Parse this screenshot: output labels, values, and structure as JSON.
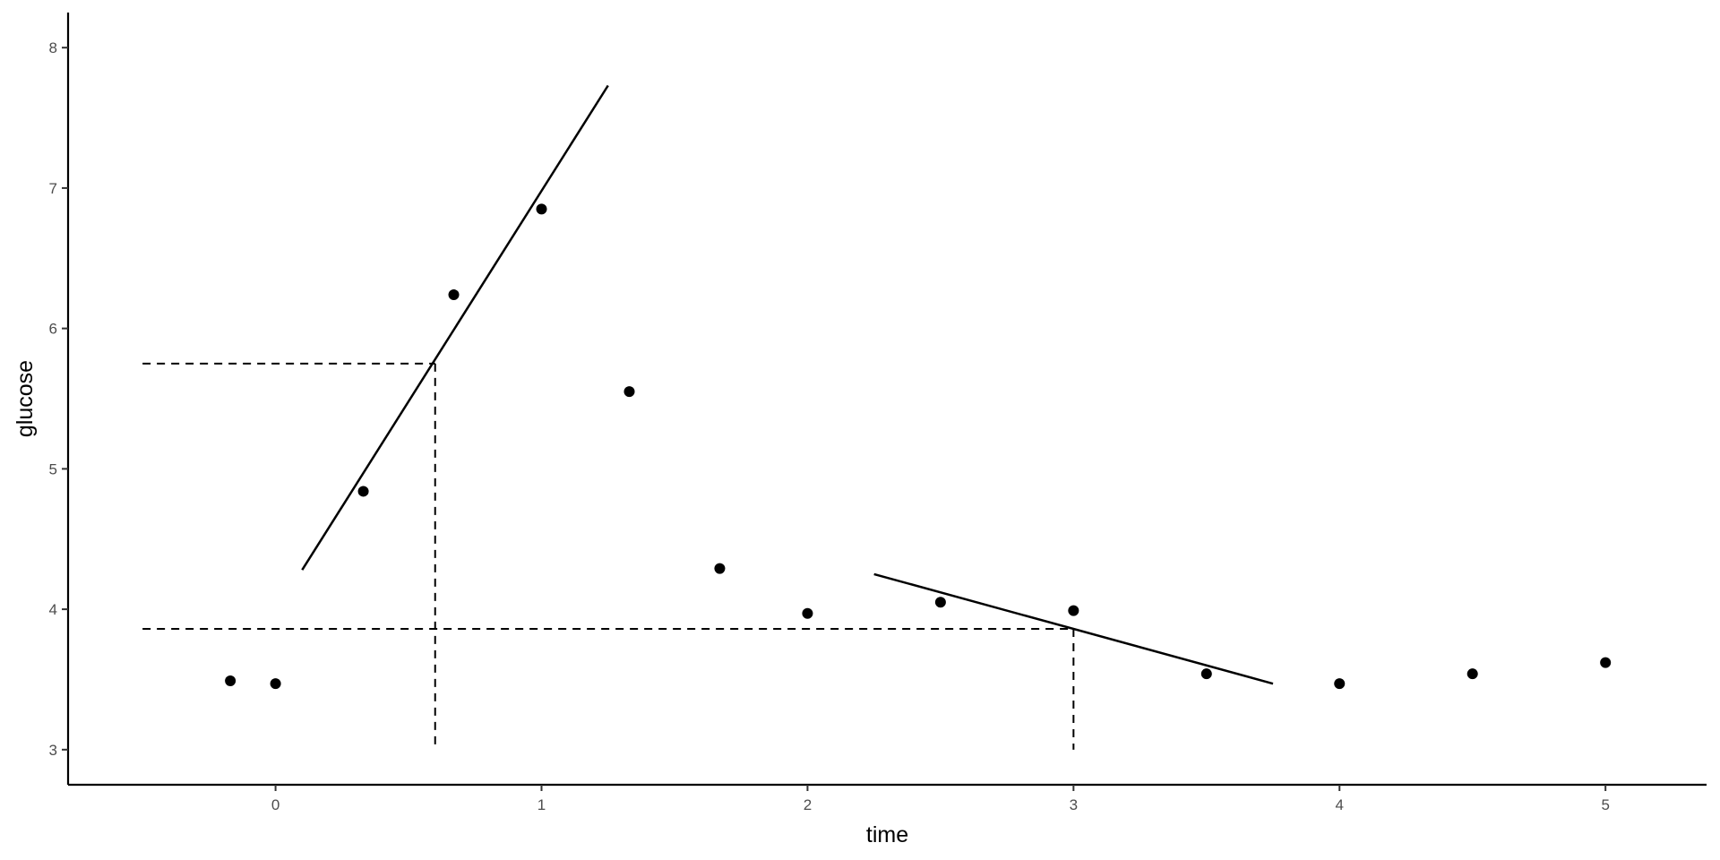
{
  "chart_data": {
    "type": "scatter",
    "xlabel": "time",
    "ylabel": "glucose",
    "xlim": [
      -0.78,
      5.38
    ],
    "ylim": [
      2.75,
      8.25
    ],
    "x_ticks": [
      0,
      1,
      2,
      3,
      4,
      5
    ],
    "y_ticks": [
      3,
      4,
      5,
      6,
      7,
      8
    ],
    "grid": false,
    "points": [
      {
        "x": -0.17,
        "y": 3.49
      },
      {
        "x": 0.0,
        "y": 3.47
      },
      {
        "x": 0.33,
        "y": 4.84
      },
      {
        "x": 0.67,
        "y": 6.24
      },
      {
        "x": 1.0,
        "y": 6.85
      },
      {
        "x": 1.33,
        "y": 5.55
      },
      {
        "x": 1.67,
        "y": 4.29
      },
      {
        "x": 2.0,
        "y": 3.97
      },
      {
        "x": 2.5,
        "y": 4.05
      },
      {
        "x": 3.0,
        "y": 3.99
      },
      {
        "x": 3.5,
        "y": 3.54
      },
      {
        "x": 4.0,
        "y": 3.47
      },
      {
        "x": 4.5,
        "y": 3.54
      },
      {
        "x": 5.0,
        "y": 3.62
      }
    ],
    "fit_lines": [
      {
        "x1": 0.1,
        "y1": 4.28,
        "x2": 1.25,
        "y2": 7.73
      },
      {
        "x1": 2.25,
        "y1": 4.25,
        "x2": 3.75,
        "y2": 3.47
      }
    ],
    "reference_lines": [
      {
        "x1": -0.5,
        "y1": 5.75,
        "x2": 0.6,
        "y2": 5.75
      },
      {
        "x1": 0.6,
        "y1": 5.75,
        "x2": 0.6,
        "y2": 3.0
      },
      {
        "x1": -0.5,
        "y1": 3.86,
        "x2": 3.0,
        "y2": 3.86
      },
      {
        "x1": 3.0,
        "y1": 3.86,
        "x2": 3.0,
        "y2": 3.0
      }
    ]
  }
}
